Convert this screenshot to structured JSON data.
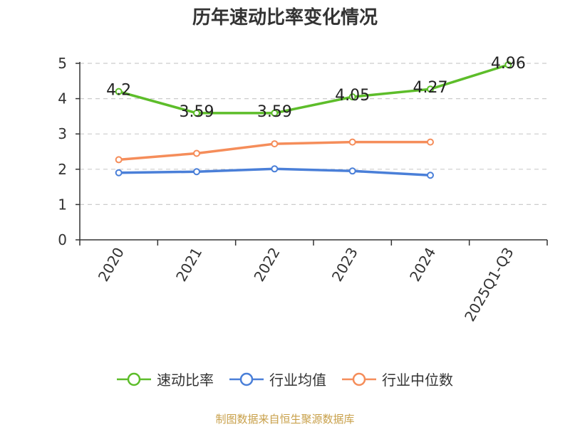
{
  "title": "历年速动比率变化情况",
  "source": "制图数据来自恒生聚源数据库",
  "colors": {
    "axis": "#333333",
    "grid": "#cccccc",
    "text": "#333333"
  },
  "chart_data": {
    "type": "line",
    "title": "历年速动比率变化情况",
    "categories": [
      "2020",
      "2021",
      "2022",
      "2023",
      "2024",
      "2025Q1-Q3"
    ],
    "ylim": [
      0,
      5
    ],
    "yticks": [
      0,
      1,
      2,
      3,
      4,
      5
    ],
    "grid": true,
    "legend_position": "bottom",
    "series": [
      {
        "name": "速动比率",
        "color": "#5dbd2a",
        "values": [
          4.2,
          3.59,
          3.59,
          4.05,
          4.27,
          4.96
        ],
        "labels": [
          "4.2",
          "3.59",
          "3.59",
          "4.05",
          "4.27",
          "4.96"
        ]
      },
      {
        "name": "行业均值",
        "color": "#4a7fd8",
        "values": [
          1.9,
          1.93,
          2.01,
          1.95,
          1.83,
          null
        ],
        "labels": []
      },
      {
        "name": "行业中位数",
        "color": "#f58d5a",
        "values": [
          2.27,
          2.45,
          2.72,
          2.77,
          2.77,
          null
        ],
        "labels": []
      }
    ]
  }
}
